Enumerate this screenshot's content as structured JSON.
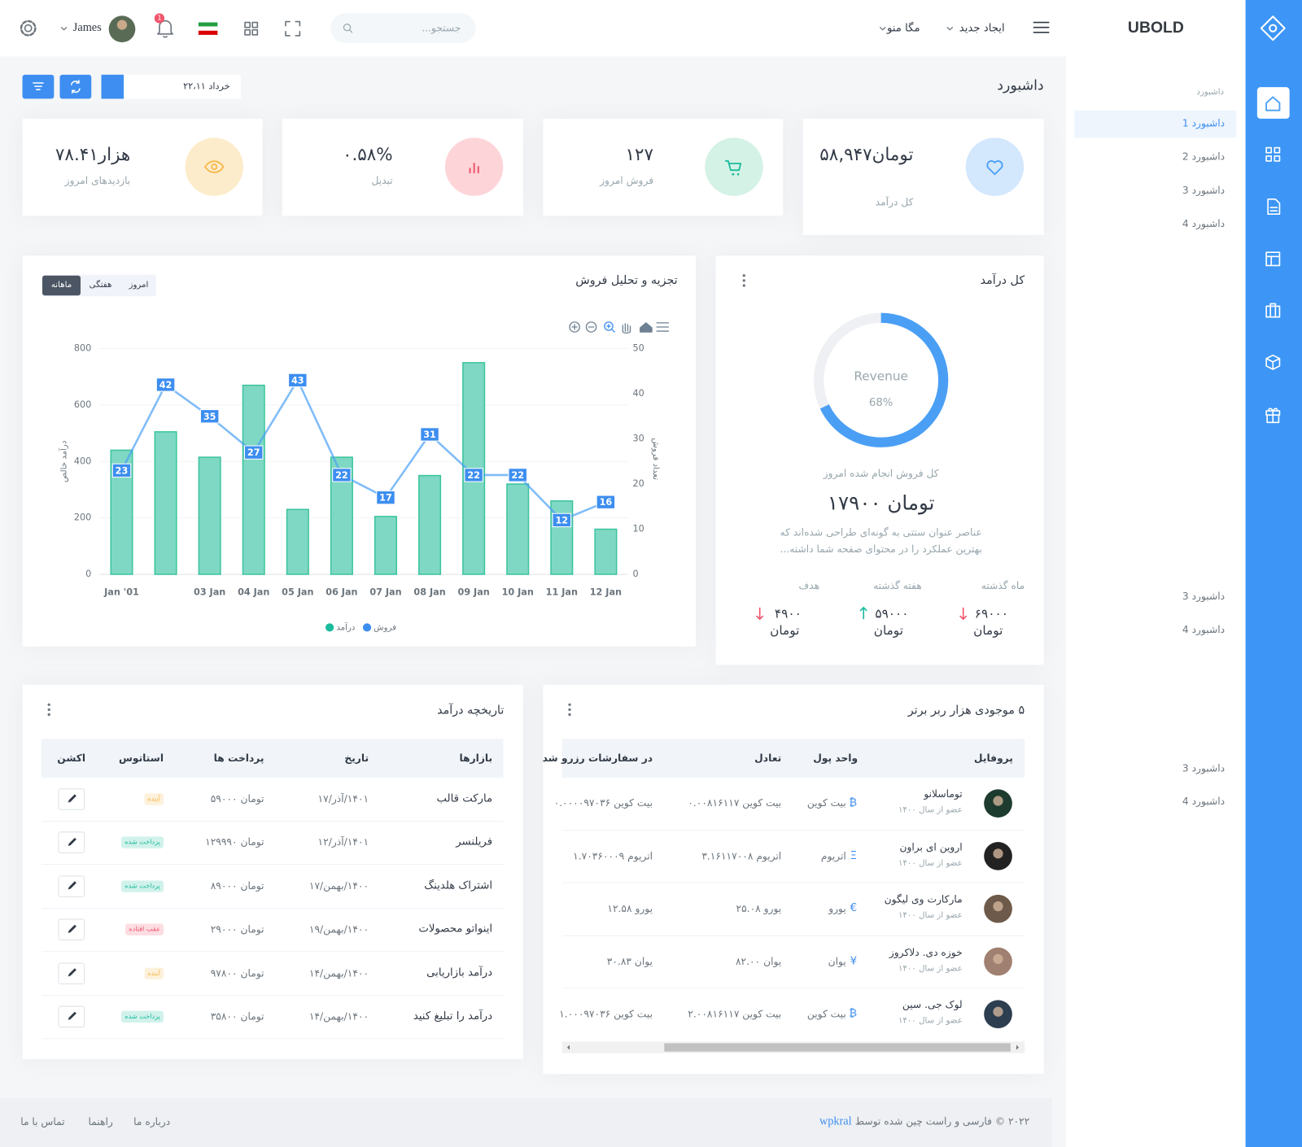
{
  "header": {
    "logo": "UBOLD",
    "create": "ایجاد جدید",
    "mega": "مگا منو",
    "search": "جستجو...",
    "user": "James",
    "badge": "1"
  },
  "sidebar": {
    "title": "داشبورد",
    "items": [
      "داشبورد 1",
      "داشبورد 2",
      "داشبورد 3",
      "داشبورد 4"
    ],
    "items2": [
      "داشبورد 3",
      "داشبورد 4"
    ],
    "items3": [
      "داشبورد 3",
      "داشبورد 4"
    ]
  },
  "page": {
    "title": "داشبورد",
    "date": "خرداد ۲۲،۱۱"
  },
  "stats": [
    {
      "value": "تومان۵۸,۹۴۷",
      "label": "کل درآمد"
    },
    {
      "value": "۱۲۷",
      "label": "فروش امروز"
    },
    {
      "value": "۰.۵۸%",
      "label": "تبدیل"
    },
    {
      "value": "هزار۷۸.۴۱",
      "label": "بازدیدهای امروز"
    }
  ],
  "sales_chart": {
    "type": "bar",
    "title": "تجزیه و تحلیل فروش",
    "tabs": [
      "امروز",
      "هفتگی",
      "ماهانه"
    ],
    "active_tab": 2,
    "categories": [
      "Jan '01",
      null,
      "03 Jan",
      "04 Jan",
      "05 Jan",
      "06 Jan",
      "07 Jan",
      "08 Jan",
      "09 Jan",
      "10 Jan",
      "11 Jan",
      "12 Jan"
    ],
    "series": [
      {
        "name": "درآمد",
        "color": "#7fd8c3",
        "values": [
          440,
          505,
          415,
          670,
          230,
          415,
          205,
          350,
          750,
          320,
          260,
          160
        ]
      },
      {
        "name": "فروش",
        "type": "line",
        "axis": "y2",
        "color": "#4a9ff5",
        "values": [
          23,
          42,
          35,
          27,
          43,
          22,
          17,
          31,
          22,
          22,
          12,
          16
        ]
      }
    ],
    "ylabel": "درآمد خالص",
    "y2label": "تعداد فروش",
    "ylim": [
      0,
      800
    ],
    "yticks": [
      0,
      200,
      400,
      600,
      800
    ],
    "y2lim": [
      0,
      50
    ],
    "y2ticks": [
      0,
      10,
      20,
      30,
      40,
      50
    ],
    "grid": true
  },
  "revenue": {
    "title": "کل درآمد",
    "chart": {
      "type": "donut",
      "center_label": "Revenue",
      "values": [
        68
      ],
      "value_labels": [
        "68%"
      ],
      "color": "#4a9ff5",
      "track_color": "#eef0f3"
    },
    "subtitle": "کل فروش انجام شده امروز",
    "total": "تومان ۱۷۹۰۰",
    "description": [
      "عناصر عنوان ستتی به گونه‌ای طراحی شده‌اند که",
      "بهترین عملکرد را در محتوای صفحه شما داشته..."
    ],
    "columns": [
      {
        "label": "ماه گذشته",
        "value": "۶۹۰۰۰",
        "unit": "تومان",
        "trend": "down"
      },
      {
        "label": "هفته گذشته",
        "value": "۵۹۰۰۰",
        "unit": "تومان",
        "trend": "up"
      },
      {
        "label": "هدف",
        "value": "۴۹۰۰",
        "unit": "تومان",
        "trend": "down"
      }
    ]
  },
  "history": {
    "title": "تاریخچه درآمد",
    "columns": [
      "بازارها",
      "تاریخ",
      "پرداخت ها",
      "استاتوس",
      "اکشن"
    ],
    "rows": [
      [
        "مارکت قالب",
        "۱۷/آذر/۱۴۰۱",
        "تومان ۵۹۰۰۰",
        "آینده"
      ],
      [
        "فریلنسر",
        "۱۲/آذر/۱۴۰۱",
        "تومان ۱۲۹۹۹۰",
        "پرداخت شده"
      ],
      [
        "اشتراک هلدینگ",
        "۱۷/بهمن/۱۴۰۰",
        "تومان ۸۹۰۰۰",
        "پرداخت شده"
      ],
      [
        "اینواتو محصولات",
        "۱۹/بهمن/۱۴۰۰",
        "تومان ۲۹۰۰۰",
        "عقب افتاده"
      ],
      [
        "درآمد بازاریابی",
        "۱۴/بهمن/۱۴۰۰",
        "تومان ۹۷۸۰۰",
        "آینده"
      ],
      [
        "درآمد را تبلیغ کنید",
        "۱۴/بهمن/۱۴۰۰",
        "تومان ۳۵۸۰۰",
        "پرداخت شده"
      ]
    ],
    "status_colors": [
      "#f7b84b",
      "#1abc9c",
      "#1abc9c",
      "#f1556c",
      "#f7b84b",
      "#1abc9c"
    ]
  },
  "holders": {
    "title": "۵ موجودی هزار ربر برتر",
    "columns": [
      "پروفایل",
      "واحد پول",
      "تعادل",
      "در سفارشات رزرو شد"
    ],
    "rows": [
      {
        "name": "توماسلانو",
        "since": "عضو از سال ۱۴۰۰",
        "symbol": "₿",
        "currency": "بیت کوین",
        "balance": "بیت کوین ۰.۰۰۸۱۶۱۱۷",
        "reserved": "بیت کوین ۰.۰۰۰۰۹۷۰۳۶"
      },
      {
        "name": "اروین ای براون",
        "since": "عضو از سال ۱۴۰۰",
        "symbol": "Ξ",
        "currency": "اتریوم",
        "balance": "اتریوم ۳.۱۶۱۱۷۰۰۸",
        "reserved": "اتریوم ۱.۷۰۳۶۰۰۰۹"
      },
      {
        "name": "مارکارت وی لیگون",
        "since": "عضو از سال ۱۴۰۰",
        "symbol": "€",
        "currency": "یورو",
        "balance": "یورو ۲۵.۰۸",
        "reserved": "یورو ۱۲.۵۸"
      },
      {
        "name": "خوزه دی. دلاکروز",
        "since": "عضو از سال ۱۴۰۰",
        "symbol": "¥",
        "currency": "یوان",
        "balance": "یوان ۸۲.۰۰",
        "reserved": "یوان ۳۰.۸۳"
      },
      {
        "name": "لوک جی. سین",
        "since": "عضو از سال ۱۴۰۰",
        "symbol": "₿",
        "currency": "بیت کوین",
        "balance": "بیت کوین ۲.۰۰۸۱۶۱۱۷",
        "reserved": "بیت کوین ۱.۰۰۰۹۷۰۳۶"
      }
    ]
  },
  "footer": {
    "copyright": "۲۰۲۲ © فارسی و راست چین شده توسط",
    "brand": "wpkral",
    "links": [
      "درباره ما",
      "راهنما",
      "تماس با ما"
    ]
  }
}
